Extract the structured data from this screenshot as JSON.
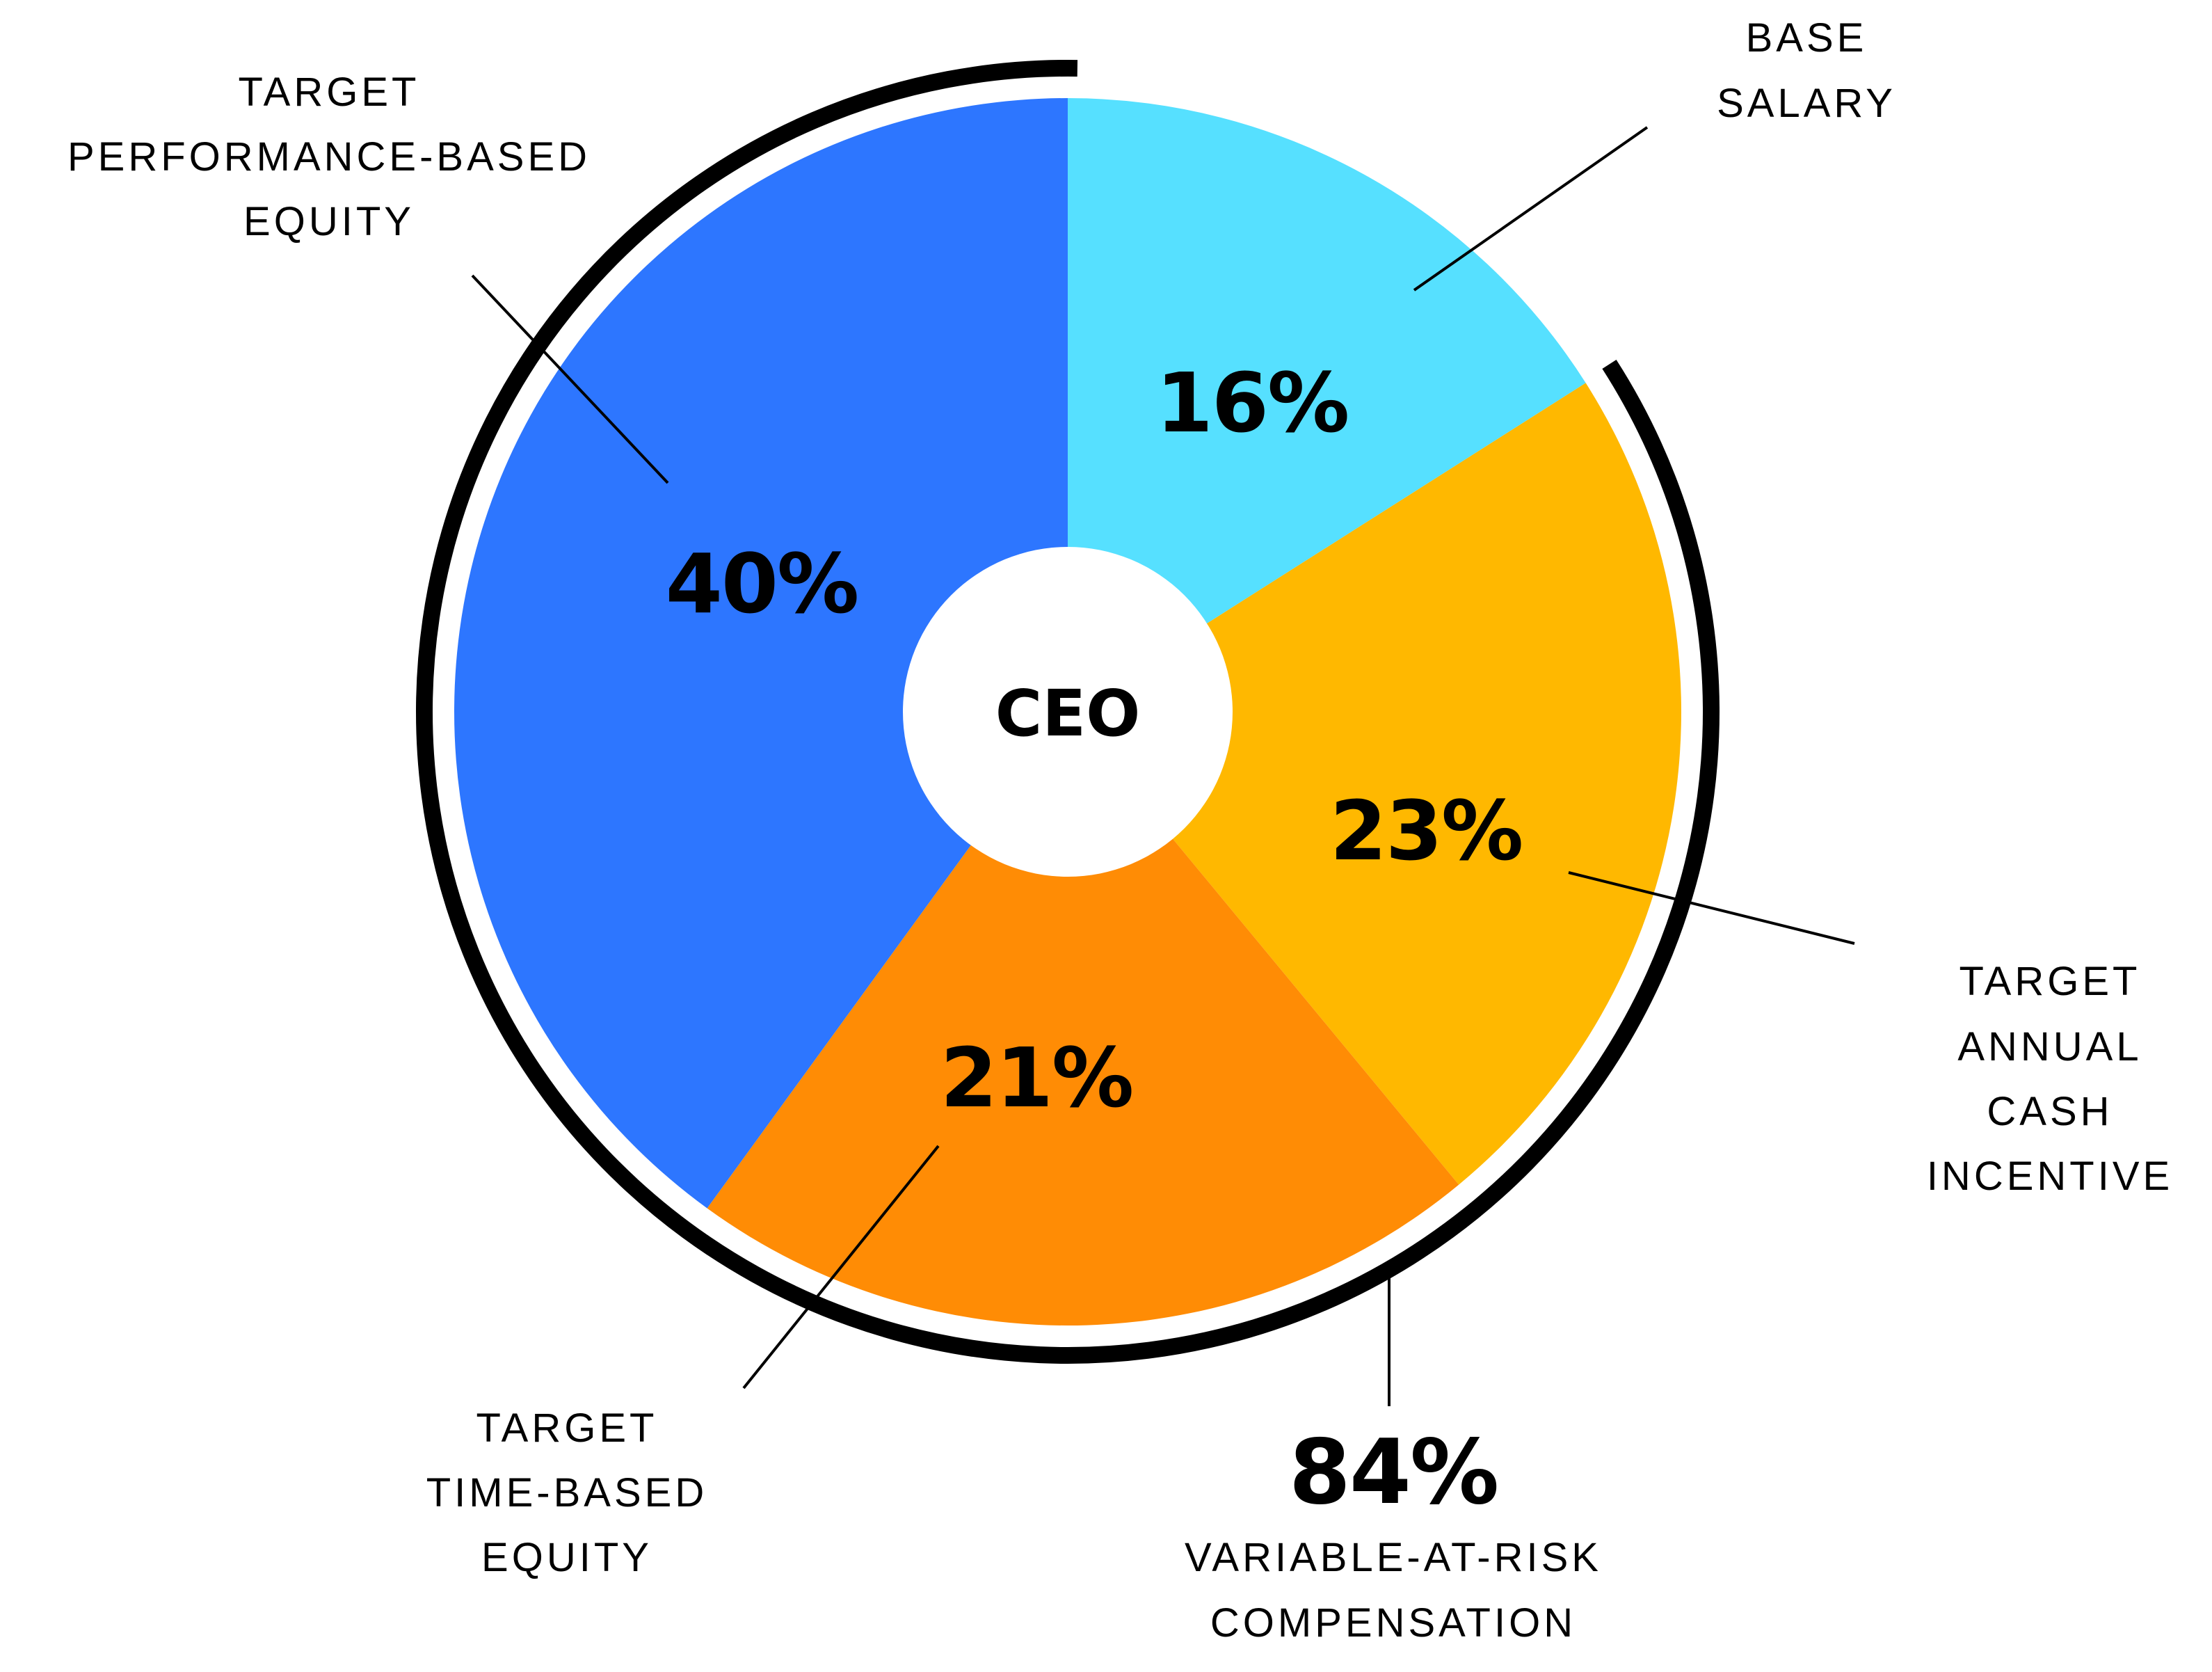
{
  "chart_data": {
    "type": "pie",
    "title": "",
    "center_label": "CEO",
    "categories": [
      "Base Salary",
      "Target Annual Cash Incentive",
      "Target Time-Based Equity",
      "Target Performance-Based Equity"
    ],
    "values": [
      16,
      23,
      21,
      40
    ],
    "unit": "%",
    "slices": [
      {
        "key": "base_salary",
        "label_lines": [
          "BASE",
          "SALARY"
        ],
        "value": 16,
        "display": "16%",
        "color": "#56E0FF"
      },
      {
        "key": "annual_cash",
        "label_lines": [
          "TARGET",
          "ANNUAL",
          "CASH",
          "INCENTIVE"
        ],
        "value": 23,
        "display": "23%",
        "color": "#FFB800"
      },
      {
        "key": "time_equity",
        "label_lines": [
          "TARGET",
          "TIME-BASED",
          "EQUITY"
        ],
        "value": 21,
        "display": "21%",
        "color": "#FF8C05"
      },
      {
        "key": "perf_equity",
        "label_lines": [
          "TARGET",
          "PERFORMANCE-BASED",
          "EQUITY"
        ],
        "value": 40,
        "display": "40%",
        "color": "#2D76FF"
      }
    ],
    "bracket_annotation": {
      "value": 84,
      "display": "84%",
      "label_lines": [
        "VARIABLE-AT-RISK",
        "COMPENSATION"
      ],
      "covers": [
        "Target Annual Cash Incentive",
        "Target Time-Based Equity",
        "Target Performance-Based Equity"
      ]
    },
    "legend": "none (callout labels)",
    "start_angle": "12 o'clock, clockwise"
  }
}
